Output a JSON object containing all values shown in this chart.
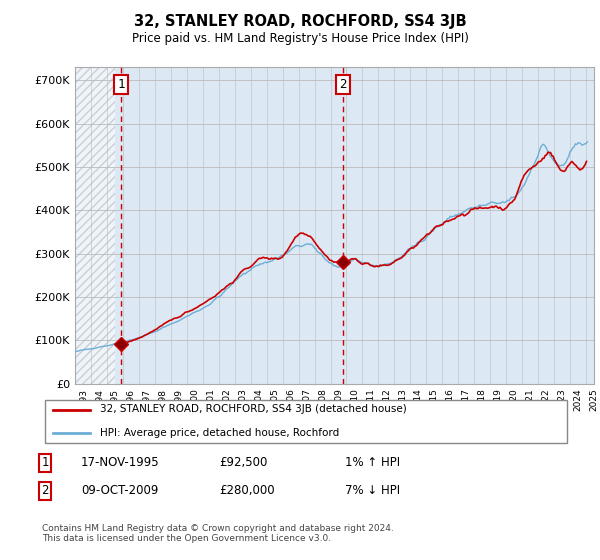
{
  "title": "32, STANLEY ROAD, ROCHFORD, SS4 3JB",
  "subtitle": "Price paid vs. HM Land Registry's House Price Index (HPI)",
  "ylabel_ticks": [
    "£0",
    "£100K",
    "£200K",
    "£300K",
    "£400K",
    "£500K",
    "£600K",
    "£700K"
  ],
  "ytick_values": [
    0,
    100000,
    200000,
    300000,
    400000,
    500000,
    600000,
    700000
  ],
  "ylim": [
    0,
    730000
  ],
  "xlim_start": 1993.0,
  "xlim_end": 2025.5,
  "purchase1_x": 1995.88,
  "purchase1_y": 92500,
  "purchase2_x": 2009.78,
  "purchase2_y": 280000,
  "vline_color": "#cc0000",
  "price_color": "#cc0000",
  "hpi_color": "#6baed6",
  "bg_color": "#dce9f5",
  "hatch_color": "#c8c8c8",
  "grid_color": "#bbbbbb",
  "legend_entries": [
    "32, STANLEY ROAD, ROCHFORD, SS4 3JB (detached house)",
    "HPI: Average price, detached house, Rochford"
  ],
  "transaction1_date": "17-NOV-1995",
  "transaction1_price": "£92,500",
  "transaction1_hpi": "1% ↑ HPI",
  "transaction2_date": "09-OCT-2009",
  "transaction2_price": "£280,000",
  "transaction2_hpi": "7% ↓ HPI",
  "footer": "Contains HM Land Registry data © Crown copyright and database right 2024.\nThis data is licensed under the Open Government Licence v3.0.",
  "xtick_years": [
    "1993",
    "1994",
    "1995",
    "1996",
    "1997",
    "1998",
    "1999",
    "2000",
    "2001",
    "2002",
    "2003",
    "2004",
    "2005",
    "2006",
    "2007",
    "2008",
    "2009",
    "2010",
    "2011",
    "2012",
    "2013",
    "2014",
    "2015",
    "2016",
    "2017",
    "2018",
    "2019",
    "2020",
    "2021",
    "2022",
    "2023",
    "2024",
    "2025"
  ]
}
